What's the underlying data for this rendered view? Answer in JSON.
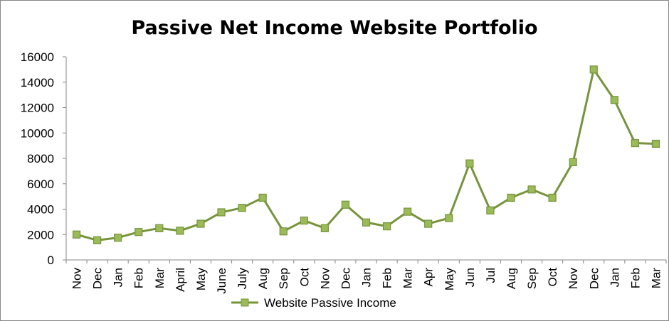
{
  "colors": {
    "line": "#77933C",
    "marker_fill": "#9BBB59",
    "marker_stroke": "#77933C",
    "axis": "#868686"
  },
  "chart_data": {
    "type": "line",
    "title": "Passive Net Income Website Portfolio",
    "xlabel": "",
    "ylabel": "",
    "ylim": [
      0,
      16000
    ],
    "y_ticks": [
      "0",
      "2000",
      "4000",
      "6000",
      "8000",
      "10000",
      "12000",
      "14000",
      "16000"
    ],
    "grid": false,
    "legend_position": "bottom",
    "categories": [
      "Nov",
      "Dec",
      "Jan",
      "Feb",
      "Mar",
      "April",
      "May",
      "June",
      "July",
      "Aug",
      "Sep",
      "Oct",
      "Nov",
      "Dec",
      "Jan",
      "Feb",
      "Mar",
      "Apr",
      "May",
      "Jun",
      "Jul",
      "Aug",
      "Sep",
      "Oct",
      "Nov",
      "Dec",
      "Jan",
      "Feb",
      "Mar"
    ],
    "series": [
      {
        "name": "Website Passive Income",
        "values": [
          2000,
          1550,
          1750,
          2200,
          2500,
          2300,
          2850,
          3750,
          4100,
          4900,
          2250,
          3100,
          2500,
          4350,
          2950,
          2650,
          3800,
          2850,
          3300,
          7600,
          3900,
          4900,
          5550,
          4900,
          7700,
          15000,
          12600,
          9200,
          9150
        ]
      }
    ]
  }
}
